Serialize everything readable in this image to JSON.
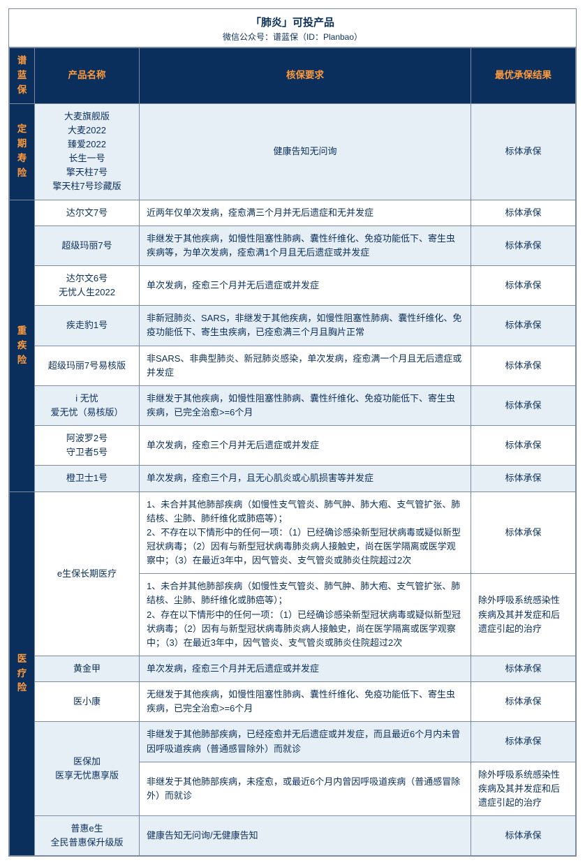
{
  "title": "「肺炎」可投产品",
  "subtitle": "微信公众号：谱蓝保（ID：Planbao）",
  "brand_vertical": "谱蓝保",
  "headers": {
    "product": "产品名称",
    "requirement": "核保要求",
    "result": "最优承保结果"
  },
  "colors": {
    "header_bg": "#0a2f5c",
    "header_fg": "#ff9a3c",
    "border": "#7a8aa0",
    "shade_bg": "#e6eef6",
    "text": "#0a2f5c"
  },
  "categories": [
    {
      "name": "定期寿险",
      "rows": [
        {
          "product": "大麦旗舰版\n大麦2022\n臻爱2022\n长生一号\n擎天柱7号\n擎天柱7号珍藏版",
          "requirement": "健康告知无问询",
          "requirement_align": "center",
          "result": "标体承保",
          "shade": true
        }
      ]
    },
    {
      "name": "重疾险",
      "rows": [
        {
          "product": "达尔文7号",
          "requirement": "近两年仅单次发病，痊愈满三个月并无后遗症和无并发症",
          "result": "标体承保",
          "shade": false
        },
        {
          "product": "超级玛丽7号",
          "requirement": "非继发于其他疾病，如慢性阻塞性肺病、囊性纤维化、免疫功能低下、寄生虫疾病等，为单次发病，痊愈满1个月且无后遗症或并发症",
          "result": "标体承保",
          "shade": true
        },
        {
          "product": "达尔文6号\n无忧人生2022",
          "requirement": "单次发病，痊愈三个月并无后遗症或并发症",
          "result": "标体承保",
          "shade": false
        },
        {
          "product": "疾走豹1号",
          "requirement": "非新冠肺炎、SARS，非继发于其他疾病，如慢性阻塞性肺病、囊性纤维化、免疫功能低下、寄生虫疾病，已痊愈满三个月且胸片正常",
          "result": "标体承保",
          "shade": true
        },
        {
          "product": "超级玛丽7号易核版",
          "requirement": "非SARS、非典型肺炎、新冠肺炎感染，单次发病，痊愈满一个月且无后遗症或并发症",
          "result": "标体承保",
          "shade": false
        },
        {
          "product": "i 无忧\n爱无忧（易核版）",
          "requirement": "非继发于其他疾病，如慢性阻塞性肺病、囊性纤维化、免疫功能低下、寄生虫疾病，已完全治愈>=6个月",
          "result": "标体承保",
          "shade": true
        },
        {
          "product": "阿波罗2号\n守卫者5号",
          "requirement": "单次发病，痊愈三个月并无后遗症或并发症",
          "result": "标体承保",
          "shade": false
        },
        {
          "product": "橙卫士1号",
          "requirement": "单次发病，痊愈三个月，且无心肌炎或心肌损害等并发症",
          "result": "标体承保",
          "shade": true
        }
      ]
    },
    {
      "name": "医疗险",
      "rows": [
        {
          "product": "e生保长期医疗",
          "prod_rowspan": 2,
          "requirement": "1、未合并其他肺部疾病（如慢性支气管炎、肺气肿、肺大疱、支气管扩张、肺结核、尘肺、肺纤维化或肺癌等）；\n2、不存在以下情形中的任何一项：（1）已经确诊感染新型冠状病毒或疑似新型冠状病毒；（2）因有与新型冠状病毒肺炎病人接触史，尚在医学隔离或医学观察中；（3）在最近3年中，因气管炎、支气管炎或肺炎住院超过2次",
          "result": "标体承保",
          "shade": false
        },
        {
          "requirement": "1、未合并其他肺部疾病（如慢性支气管炎、肺气肿、肺大疱、支气管扩张、肺结核、尘肺、肺纤维化或肺癌等）；\n2、存在以下情形中的任何一项：（1）已经确诊感染新型冠状病毒或疑似新型冠状病毒；（2）因有与新型冠状病毒肺炎病人接触史，尚在医学隔离或医学观察中；（3）在最近3年中，因气管炎、支气管炎或肺炎住院超过2次",
          "result": "除外呼吸系统感染性疾病及其并发症和后遗症引起的治疗",
          "shade": false,
          "result_align": "left"
        },
        {
          "product": "黄金甲",
          "requirement": "单次发病，痊愈三个月并无后遗症或并发症",
          "result": "标体承保",
          "shade": true
        },
        {
          "product": "医小康",
          "requirement": "无继发于其他疾病，如慢性阻塞性肺病、囊性纤维化、免疫功能低下、寄生虫疾病，已完全治愈>=6个月",
          "result": "标体承保",
          "shade": false
        },
        {
          "product": "医保加\n医享无忧惠享版",
          "prod_rowspan": 2,
          "requirement": "非继发于其他肺部疾病，已经痊愈并无后遗症或并发症，而且最近6个月内未曾因呼吸道疾病（普通感冒除外）而就诊",
          "result": "标体承保",
          "shade": true
        },
        {
          "requirement": "非继发于其他肺部疾病，未痊愈，或最近6个月内曾因呼吸道疾病（普通感冒除外）而就诊",
          "result": "除外呼吸系统感染性疾病及其并发症和后遗症引起的治疗",
          "shade": false,
          "result_align": "left"
        },
        {
          "product": "普惠e生\n全民普惠保升级版",
          "requirement": "健康告知无问询/无健康告知",
          "result": "标体承保",
          "shade": true
        }
      ]
    }
  ]
}
